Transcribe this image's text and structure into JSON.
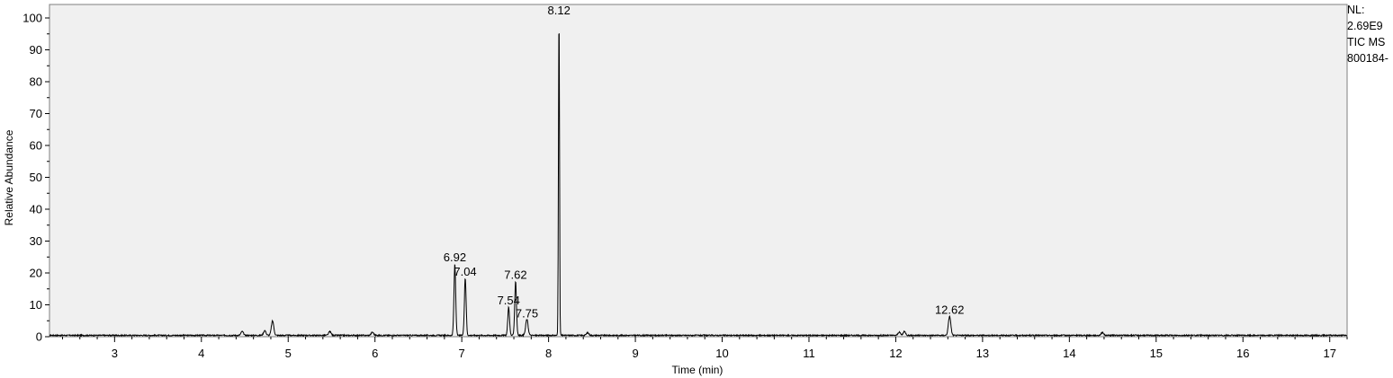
{
  "info": {
    "nl_label": "NL:",
    "nl_value": "2.69E9",
    "trace": "TIC  MS",
    "sample": "800184-"
  },
  "chart_data": {
    "type": "line",
    "title": "",
    "xlabel": "Time (min)",
    "ylabel": "Relative Abundance",
    "xlim": [
      2.25,
      17.2
    ],
    "ylim": [
      0,
      100
    ],
    "xticks": [
      3,
      4,
      5,
      6,
      7,
      8,
      9,
      10,
      11,
      12,
      13,
      14,
      15,
      16,
      17
    ],
    "yticks": [
      0,
      10,
      20,
      30,
      40,
      50,
      60,
      70,
      80,
      90,
      100
    ],
    "grid": false,
    "line_color": "#000000",
    "background_color": "#f0f0f0",
    "peaks": [
      {
        "x": 4.82,
        "y": 4.5,
        "label": ""
      },
      {
        "x": 4.73,
        "y": 1.5,
        "label": ""
      },
      {
        "x": 4.47,
        "y": 1.2,
        "label": ""
      },
      {
        "x": 5.48,
        "y": 1.2,
        "label": ""
      },
      {
        "x": 5.97,
        "y": 1.0,
        "label": ""
      },
      {
        "x": 6.92,
        "y": 22.5,
        "label": "6.92"
      },
      {
        "x": 7.04,
        "y": 18.0,
        "label": "7.04"
      },
      {
        "x": 7.54,
        "y": 9.0,
        "label": "7.54"
      },
      {
        "x": 7.62,
        "y": 17.0,
        "label": "7.62"
      },
      {
        "x": 7.75,
        "y": 5.0,
        "label": "7.75"
      },
      {
        "x": 8.12,
        "y": 100,
        "label": "8.12"
      },
      {
        "x": 8.45,
        "y": 0.8,
        "label": ""
      },
      {
        "x": 12.04,
        "y": 1.0,
        "label": ""
      },
      {
        "x": 12.1,
        "y": 1.2,
        "label": ""
      },
      {
        "x": 12.62,
        "y": 6.0,
        "label": "12.62"
      },
      {
        "x": 14.38,
        "y": 0.9,
        "label": ""
      }
    ]
  }
}
